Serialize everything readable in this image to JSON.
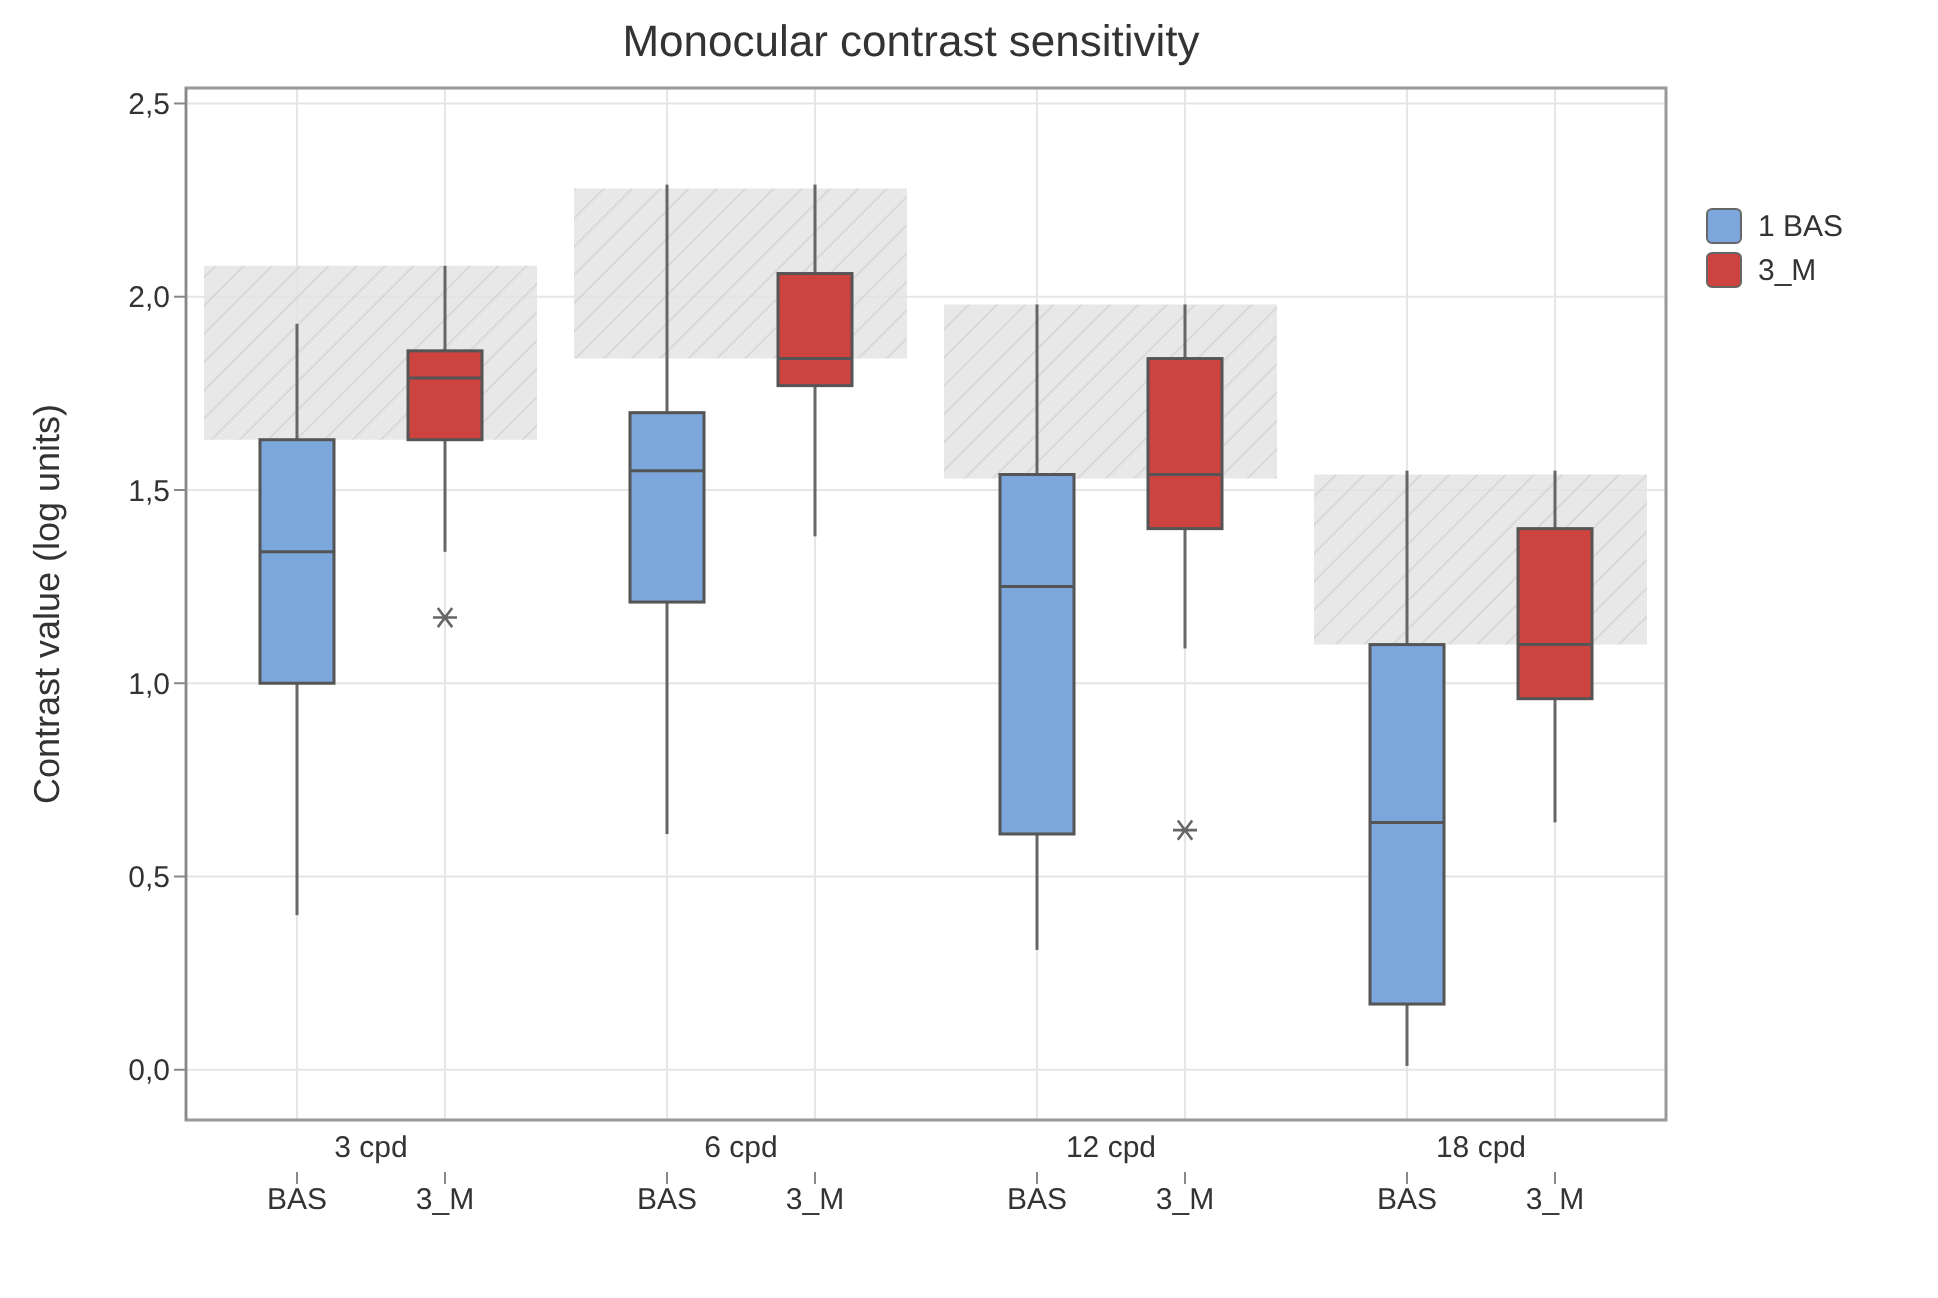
{
  "chart_data": {
    "type": "box",
    "title": "Monocular contrast sensitivity",
    "ylabel": "Contrast value (log units)",
    "categories": [
      "3 cpd",
      "6 cpd",
      "12 cpd",
      "18 cpd"
    ],
    "series": [
      {
        "type": "bar",
        "color": "#e4e4e4",
        "base": [
          1.63,
          1.84,
          1.53,
          1.1
        ],
        "values": [
          0.45,
          0.44,
          0.45,
          0.44
        ]
      },
      {
        "name": "1 BAS",
        "color": "#7ba7dc",
        "boxes": [
          {
            "low": 0.4,
            "q1": 1.0,
            "median": 1.34,
            "q3": 1.63,
            "high": 1.93
          },
          {
            "low": 0.61,
            "q1": 1.21,
            "median": 1.55,
            "q3": 1.7,
            "high": 2.29
          },
          {
            "low": 0.31,
            "q1": 0.61,
            "median": 1.25,
            "q3": 1.54,
            "high": 1.98
          },
          {
            "low": 0.01,
            "q1": 0.17,
            "median": 0.64,
            "q3": 1.1,
            "high": 1.55
          }
        ]
      },
      {
        "name": "3_M",
        "color": "#cc4340",
        "boxes": [
          {
            "low": 1.34,
            "q1": 1.63,
            "median": 1.79,
            "q3": 1.86,
            "high": 2.08,
            "outliers": [
              1.17
            ]
          },
          {
            "low": 1.38,
            "q1": 1.77,
            "median": 1.84,
            "q3": 2.06,
            "high": 2.29
          },
          {
            "low": 1.09,
            "q1": 1.4,
            "median": 1.54,
            "q3": 1.84,
            "high": 1.98,
            "outliers": [
              0.62
            ]
          },
          {
            "low": 0.64,
            "q1": 0.96,
            "median": 1.1,
            "q3": 1.4,
            "high": 1.55
          }
        ]
      }
    ],
    "ylim": [
      -0.13,
      2.54
    ],
    "yticks": [
      {
        "value": 0,
        "label": "0,0"
      },
      {
        "value": 0.5,
        "label": "0,5"
      },
      {
        "value": 1,
        "label": "1,0"
      },
      {
        "value": 1.5,
        "label": "1,5"
      },
      {
        "value": 2,
        "label": "2,0"
      },
      {
        "value": 2.5,
        "label": "2,5"
      }
    ],
    "grid": true,
    "legend": "top right",
    "annotations": [
      "BAS",
      "3_M",
      "BAS",
      "3_M",
      "BAS",
      "3_M",
      "BAS",
      "3_M"
    ]
  }
}
